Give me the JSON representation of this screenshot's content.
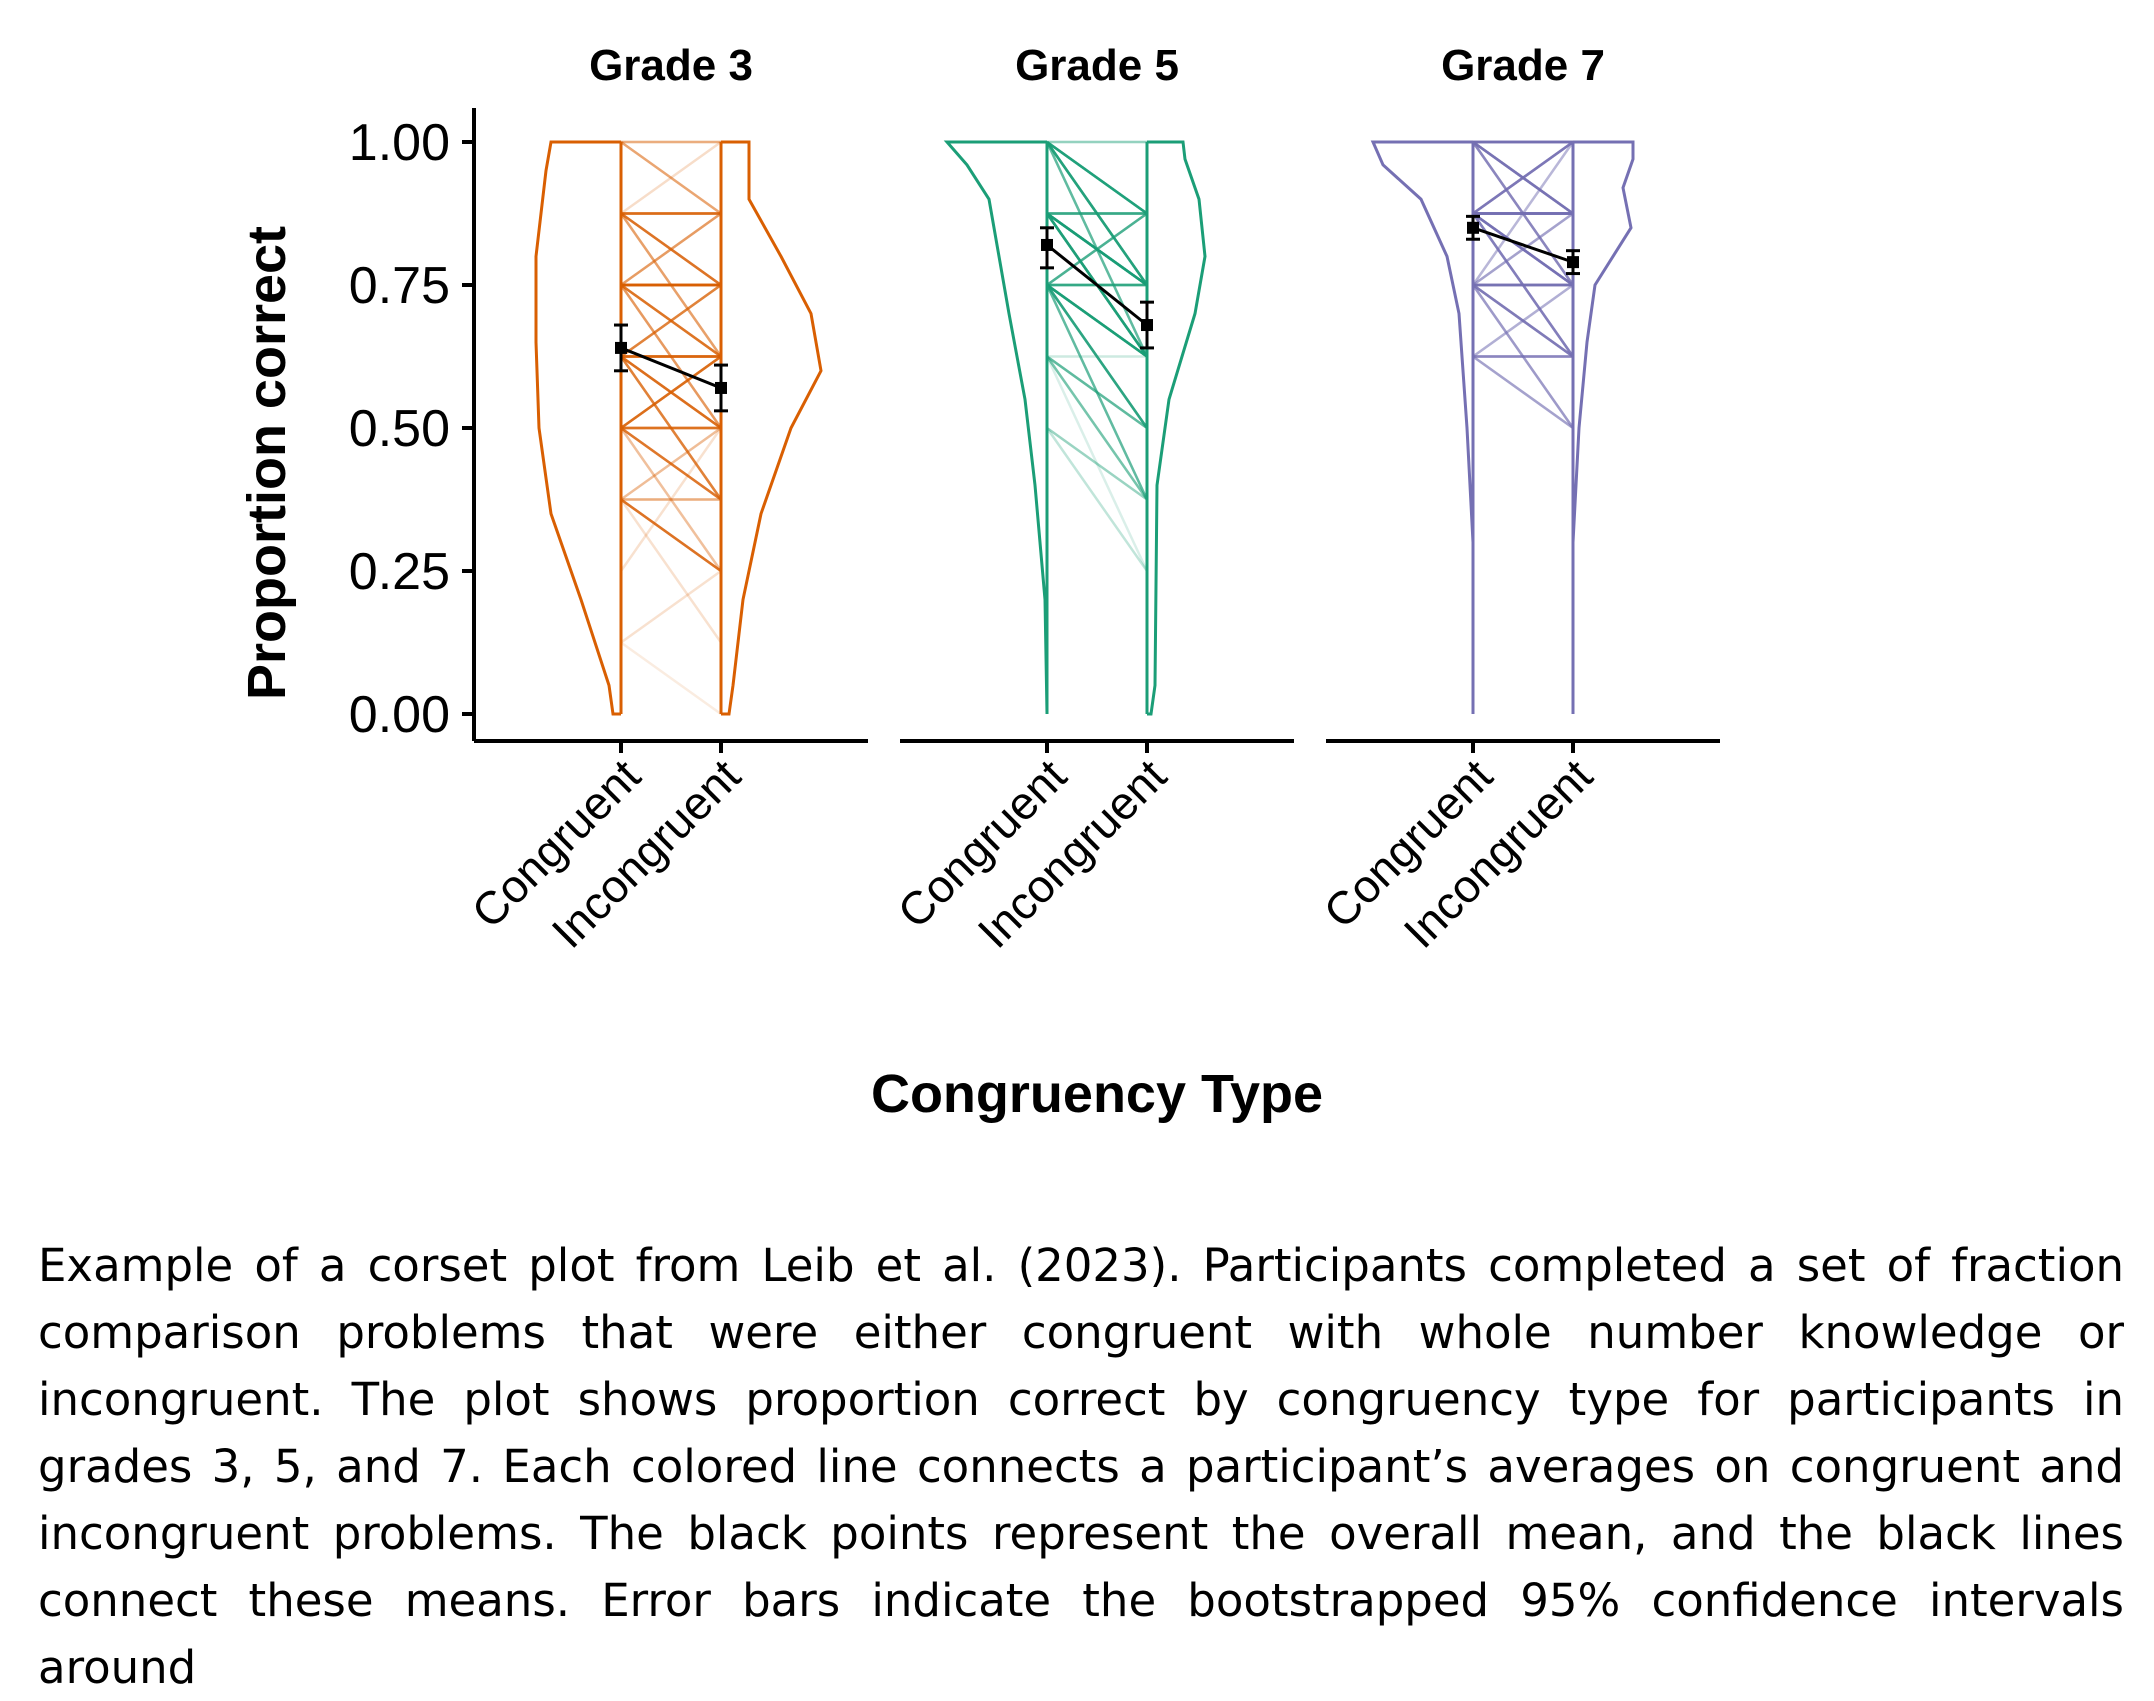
{
  "chart_data": {
    "type": "corset",
    "ylabel": "Proportion correct",
    "xlabel": "Congruency Type",
    "ylim": [
      0,
      1
    ],
    "yticks": [
      "0.00",
      "0.25",
      "0.50",
      "0.75",
      "1.00"
    ],
    "categories": [
      "Congruent",
      "Incongruent"
    ],
    "grid": false,
    "panels": [
      {
        "title": "Grade 3",
        "color": "#d95f02",
        "means": [
          0.64,
          0.57
        ],
        "ci_lower": [
          0.6,
          0.53
        ],
        "ci_upper": [
          0.68,
          0.61
        ]
      },
      {
        "title": "Grade 5",
        "color": "#1b9e77",
        "means": [
          0.82,
          0.68
        ],
        "ci_lower": [
          0.78,
          0.64
        ],
        "ci_upper": [
          0.85,
          0.72
        ]
      },
      {
        "title": "Grade 7",
        "color": "#7570b3",
        "means": [
          0.85,
          0.79
        ],
        "ci_lower": [
          0.83,
          0.77
        ],
        "ci_upper": [
          0.87,
          0.81
        ]
      }
    ]
  },
  "caption": "Example of a corset plot from Leib et al. (2023). Participants completed a set of fraction comparison problems that were either congruent with whole number knowledge or incongruent. The plot shows proportion correct by congruency type for participants in grades 3, 5, and 7. Each colored line connects a participant’s averages on congruent and incongruent problems. The black points represent the overall mean, and the black lines connect these means. Error bars indicate the bootstrapped 95% confidence intervals around"
}
